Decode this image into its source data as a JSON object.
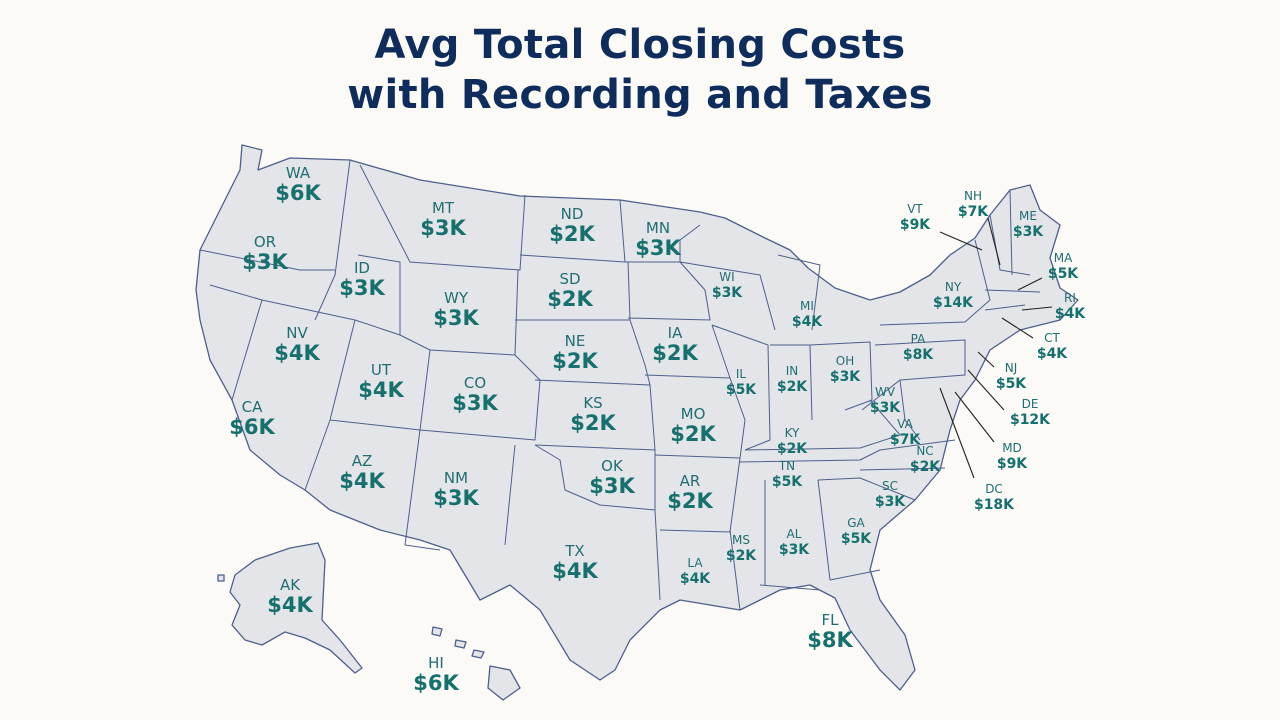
{
  "title_line1": "Avg Total Closing Costs",
  "title_line2": "with Recording and Taxes",
  "states": [
    {
      "code": "WA",
      "value": "$6K"
    },
    {
      "code": "OR",
      "value": "$3K"
    },
    {
      "code": "CA",
      "value": "$6K"
    },
    {
      "code": "NV",
      "value": "$4K"
    },
    {
      "code": "ID",
      "value": "$3K"
    },
    {
      "code": "MT",
      "value": "$3K"
    },
    {
      "code": "WY",
      "value": "$3K"
    },
    {
      "code": "UT",
      "value": "$4K"
    },
    {
      "code": "CO",
      "value": "$3K"
    },
    {
      "code": "AZ",
      "value": "$4K"
    },
    {
      "code": "NM",
      "value": "$3K"
    },
    {
      "code": "ND",
      "value": "$2K"
    },
    {
      "code": "SD",
      "value": "$2K"
    },
    {
      "code": "NE",
      "value": "$2K"
    },
    {
      "code": "KS",
      "value": "$2K"
    },
    {
      "code": "OK",
      "value": "$3K"
    },
    {
      "code": "TX",
      "value": "$4K"
    },
    {
      "code": "MN",
      "value": "$3K"
    },
    {
      "code": "IA",
      "value": "$2K"
    },
    {
      "code": "MO",
      "value": "$2K"
    },
    {
      "code": "AR",
      "value": "$2K"
    },
    {
      "code": "LA",
      "value": "$4K"
    },
    {
      "code": "WI",
      "value": "$3K"
    },
    {
      "code": "IL",
      "value": "$5K"
    },
    {
      "code": "MI",
      "value": "$4K"
    },
    {
      "code": "IN",
      "value": "$2K"
    },
    {
      "code": "OH",
      "value": "$3K"
    },
    {
      "code": "KY",
      "value": "$2K"
    },
    {
      "code": "TN",
      "value": "$5K"
    },
    {
      "code": "MS",
      "value": "$2K"
    },
    {
      "code": "AL",
      "value": "$3K"
    },
    {
      "code": "GA",
      "value": "$5K"
    },
    {
      "code": "FL",
      "value": "$8K"
    },
    {
      "code": "SC",
      "value": "$3K"
    },
    {
      "code": "NC",
      "value": "$2K"
    },
    {
      "code": "VA",
      "value": "$7K"
    },
    {
      "code": "WV",
      "value": "$3K"
    },
    {
      "code": "PA",
      "value": "$8K"
    },
    {
      "code": "NY",
      "value": "$14K"
    },
    {
      "code": "VT",
      "value": "$9K"
    },
    {
      "code": "NH",
      "value": "$7K"
    },
    {
      "code": "ME",
      "value": "$3K"
    },
    {
      "code": "MA",
      "value": "$5K"
    },
    {
      "code": "RI",
      "value": "$4K"
    },
    {
      "code": "CT",
      "value": "$4K"
    },
    {
      "code": "NJ",
      "value": "$5K"
    },
    {
      "code": "DE",
      "value": "$12K"
    },
    {
      "code": "MD",
      "value": "$9K"
    },
    {
      "code": "DC",
      "value": "$18K"
    },
    {
      "code": "AK",
      "value": "$4K"
    },
    {
      "code": "HI",
      "value": "$6K"
    }
  ]
}
